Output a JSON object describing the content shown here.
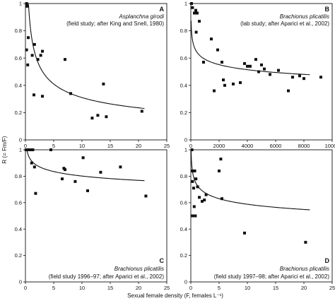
{
  "figure": {
    "ylabel": "R (= Fm/F)",
    "xlabel": "Sexual female density (F, females L⁻¹)"
  },
  "chart_data": [
    {
      "type": "scatter",
      "panel": "A",
      "species": "Asplanchna girodi",
      "caption": "(field study; after King and Snell, 1980)",
      "xlim": [
        0,
        25
      ],
      "ylim": [
        0,
        1
      ],
      "xticks": [
        "0",
        "5",
        "10",
        "15",
        "20",
        "25"
      ],
      "yticks": [
        "0",
        "0.2",
        "0.4",
        "0.6",
        "0.8",
        "1"
      ],
      "points": [
        {
          "x": 0.2,
          "y": 1.0
        },
        {
          "x": 0.3,
          "y": 0.98
        },
        {
          "x": 0.2,
          "y": 0.66
        },
        {
          "x": 0.4,
          "y": 0.55
        },
        {
          "x": 0.5,
          "y": 0.75
        },
        {
          "x": 1.2,
          "y": 0.62
        },
        {
          "x": 1.5,
          "y": 0.33
        },
        {
          "x": 1.6,
          "y": 0.7
        },
        {
          "x": 2.2,
          "y": 0.59
        },
        {
          "x": 2.7,
          "y": 0.62
        },
        {
          "x": 3.0,
          "y": 0.65
        },
        {
          "x": 3.0,
          "y": 0.32
        },
        {
          "x": 7.0,
          "y": 0.59
        },
        {
          "x": 8.0,
          "y": 0.34
        },
        {
          "x": 11.8,
          "y": 0.16
        },
        {
          "x": 12.8,
          "y": 0.18
        },
        {
          "x": 13.8,
          "y": 0.41
        },
        {
          "x": 14.3,
          "y": 0.17
        },
        {
          "x": 20.6,
          "y": 0.21
        }
      ],
      "fit": {
        "a": 0.78,
        "b": -0.4
      }
    },
    {
      "type": "scatter",
      "panel": "B",
      "species": "Brachionus plicatilis",
      "caption": "(lab study; after Aparici et al., 2002)",
      "xlim": [
        0,
        10000
      ],
      "ylim": [
        0,
        1
      ],
      "xticks": [
        "0",
        "2000",
        "4000",
        "6000",
        "8000",
        "10000"
      ],
      "yticks": [
        "0",
        "0.2",
        "0.4",
        "0.6",
        "0.8",
        "1"
      ],
      "points": [
        {
          "x": 50,
          "y": 1.0
        },
        {
          "x": 120,
          "y": 0.97
        },
        {
          "x": 250,
          "y": 0.93
        },
        {
          "x": 350,
          "y": 0.95
        },
        {
          "x": 450,
          "y": 0.93
        },
        {
          "x": 380,
          "y": 0.79
        },
        {
          "x": 600,
          "y": 0.87
        },
        {
          "x": 900,
          "y": 0.57
        },
        {
          "x": 1450,
          "y": 0.74
        },
        {
          "x": 1650,
          "y": 0.36
        },
        {
          "x": 1900,
          "y": 0.66
        },
        {
          "x": 2200,
          "y": 0.57
        },
        {
          "x": 2300,
          "y": 0.44
        },
        {
          "x": 2400,
          "y": 0.4
        },
        {
          "x": 3000,
          "y": 0.41
        },
        {
          "x": 3500,
          "y": 0.42
        },
        {
          "x": 3800,
          "y": 0.56
        },
        {
          "x": 4000,
          "y": 0.54
        },
        {
          "x": 4200,
          "y": 0.54
        },
        {
          "x": 4600,
          "y": 0.59
        },
        {
          "x": 4800,
          "y": 0.5
        },
        {
          "x": 5000,
          "y": 0.55
        },
        {
          "x": 5200,
          "y": 0.52
        },
        {
          "x": 5600,
          "y": 0.48
        },
        {
          "x": 6200,
          "y": 0.51
        },
        {
          "x": 6900,
          "y": 0.36
        },
        {
          "x": 7200,
          "y": 0.46
        },
        {
          "x": 7700,
          "y": 0.47
        },
        {
          "x": 8000,
          "y": 0.45
        },
        {
          "x": 9200,
          "y": 0.46
        }
      ],
      "fit": {
        "a": 1.18,
        "b": -0.1
      }
    },
    {
      "type": "scatter",
      "panel": "C",
      "species": "Brachionus plicatilis",
      "caption": "(field study 1996–97; after Aparici et al., 2002)",
      "xlim": [
        0,
        25
      ],
      "ylim": [
        0,
        1
      ],
      "xticks": [
        "0",
        "5",
        "10",
        "15",
        "20",
        "25"
      ],
      "yticks": [
        "0",
        "0.2",
        "0.4",
        "0.6",
        "0.8",
        "1"
      ],
      "points": [
        {
          "x": 0.1,
          "y": 1.0
        },
        {
          "x": 0.3,
          "y": 1.0
        },
        {
          "x": 0.5,
          "y": 1.0
        },
        {
          "x": 0.7,
          "y": 1.0
        },
        {
          "x": 1.0,
          "y": 1.0
        },
        {
          "x": 1.3,
          "y": 1.0
        },
        {
          "x": 1.1,
          "y": 0.9
        },
        {
          "x": 1.6,
          "y": 0.87
        },
        {
          "x": 1.8,
          "y": 0.67
        },
        {
          "x": 4.5,
          "y": 1.0
        },
        {
          "x": 6.5,
          "y": 0.78
        },
        {
          "x": 6.8,
          "y": 0.86
        },
        {
          "x": 7.0,
          "y": 0.85
        },
        {
          "x": 8.8,
          "y": 0.76
        },
        {
          "x": 10.2,
          "y": 0.94
        },
        {
          "x": 11.0,
          "y": 0.69
        },
        {
          "x": 13.3,
          "y": 0.83
        },
        {
          "x": 16.8,
          "y": 0.87
        },
        {
          "x": 21.3,
          "y": 0.65
        }
      ],
      "fit": {
        "a": 0.92,
        "b": -0.06
      }
    },
    {
      "type": "scatter",
      "panel": "D",
      "species": "Brachionus plicatilis",
      "caption": "(field study 1997–98; after Aparici et al., 2002)",
      "xlim": [
        0,
        25
      ],
      "ylim": [
        0,
        1
      ],
      "xticks": [
        "0",
        "5",
        "10",
        "15",
        "20",
        "25"
      ],
      "yticks": [
        "0",
        "0.2",
        "0.4",
        "0.6",
        "0.8",
        "1"
      ],
      "points": [
        {
          "x": 0.2,
          "y": 1.0
        },
        {
          "x": 0.3,
          "y": 0.84
        },
        {
          "x": 0.4,
          "y": 0.84
        },
        {
          "x": 0.3,
          "y": 0.76
        },
        {
          "x": 0.5,
          "y": 0.71
        },
        {
          "x": 0.7,
          "y": 0.84
        },
        {
          "x": 0.8,
          "y": 0.5
        },
        {
          "x": 0.6,
          "y": 0.57
        },
        {
          "x": 0.3,
          "y": 0.5
        },
        {
          "x": 0.9,
          "y": 0.78
        },
        {
          "x": 1.2,
          "y": 0.72
        },
        {
          "x": 1.5,
          "y": 0.64
        },
        {
          "x": 2.0,
          "y": 0.61
        },
        {
          "x": 2.4,
          "y": 0.62
        },
        {
          "x": 2.7,
          "y": 0.66
        },
        {
          "x": 5.0,
          "y": 0.84
        },
        {
          "x": 5.5,
          "y": 0.63
        },
        {
          "x": 5.3,
          "y": 0.93
        },
        {
          "x": 9.5,
          "y": 0.37
        },
        {
          "x": 20.3,
          "y": 0.3
        }
      ],
      "fit": {
        "a": 0.74,
        "b": -0.1
      }
    }
  ]
}
